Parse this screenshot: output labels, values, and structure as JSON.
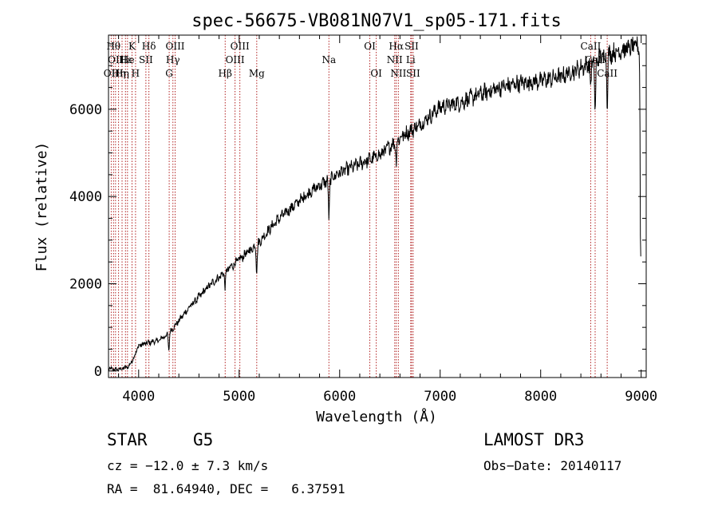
{
  "chart_data": {
    "type": "line",
    "title": "spec-56675-VB081N07V1_sp05-171.fits",
    "xlabel": "Wavelength (Å)",
    "ylabel": "Flux (relative)",
    "xlim": [
      3700,
      9050
    ],
    "ylim": [
      -150,
      7700
    ],
    "xticks": [
      4000,
      5000,
      6000,
      7000,
      8000,
      9000
    ],
    "yticks": [
      0,
      2000,
      4000,
      6000
    ],
    "continuum": [
      [
        3700,
        50
      ],
      [
        3800,
        30
      ],
      [
        3900,
        100
      ],
      [
        3950,
        300
      ],
      [
        4000,
        580
      ],
      [
        4100,
        650
      ],
      [
        4200,
        700
      ],
      [
        4300,
        860
      ],
      [
        4400,
        1150
      ],
      [
        4500,
        1450
      ],
      [
        4600,
        1700
      ],
      [
        4700,
        1950
      ],
      [
        4800,
        2150
      ],
      [
        4900,
        2350
      ],
      [
        5000,
        2550
      ],
      [
        5100,
        2750
      ],
      [
        5200,
        2950
      ],
      [
        5300,
        3250
      ],
      [
        5400,
        3500
      ],
      [
        5500,
        3700
      ],
      [
        5600,
        3900
      ],
      [
        5700,
        4100
      ],
      [
        5800,
        4250
      ],
      [
        5900,
        4400
      ],
      [
        6000,
        4550
      ],
      [
        6100,
        4650
      ],
      [
        6200,
        4750
      ],
      [
        6300,
        4850
      ],
      [
        6400,
        4950
      ],
      [
        6500,
        5150
      ],
      [
        6600,
        5350
      ],
      [
        6700,
        5500
      ],
      [
        6800,
        5650
      ],
      [
        6900,
        5850
      ],
      [
        7000,
        6050
      ],
      [
        7200,
        6150
      ],
      [
        7400,
        6350
      ],
      [
        7600,
        6500
      ],
      [
        7800,
        6600
      ],
      [
        8000,
        6650
      ],
      [
        8200,
        6750
      ],
      [
        8400,
        6950
      ],
      [
        8600,
        7200
      ],
      [
        8800,
        7350
      ],
      [
        8950,
        7450
      ],
      [
        8990,
        7400
      ]
    ],
    "absorption_features": [
      {
        "wavelength": 4300,
        "depth": 400
      },
      {
        "wavelength": 4861,
        "depth": 350
      },
      {
        "wavelength": 5175,
        "depth": 600
      },
      {
        "wavelength": 5893,
        "depth": 900
      },
      {
        "wavelength": 6563,
        "depth": 500
      },
      {
        "wavelength": 8498,
        "depth": 600
      },
      {
        "wavelength": 8542,
        "depth": 1300
      },
      {
        "wavelength": 8662,
        "depth": 1100
      },
      {
        "wavelength": 8995,
        "depth": 5000
      }
    ],
    "line_markers": [
      {
        "wavelength": 3727,
        "labels": [
          {
            "text": "OII",
            "row": 2
          }
        ]
      },
      {
        "wavelength": 3750,
        "labels": [
          {
            "text": "Hθ",
            "row": 0
          }
        ]
      },
      {
        "wavelength": 3770,
        "labels": [
          {
            "text": "OII",
            "row": 1
          }
        ]
      },
      {
        "wavelength": 3800,
        "labels": [
          {
            "text": "Hη",
            "row": 2
          }
        ]
      },
      {
        "wavelength": 3835,
        "labels": [
          {
            "text": "Hη",
            "row": 2
          }
        ]
      },
      {
        "wavelength": 3869,
        "labels": [
          {
            "text": "Hε",
            "row": 1
          }
        ]
      },
      {
        "wavelength": 3889,
        "labels": [
          {
            "text": "He",
            "row": 1
          }
        ]
      },
      {
        "wavelength": 3934,
        "labels": [
          {
            "text": "K",
            "row": 0
          }
        ]
      },
      {
        "wavelength": 3969,
        "labels": [
          {
            "text": "H",
            "row": 2
          }
        ]
      },
      {
        "wavelength": 4072,
        "labels": [
          {
            "text": "SII",
            "row": 1
          }
        ]
      },
      {
        "wavelength": 4102,
        "labels": [
          {
            "text": "Hδ",
            "row": 0
          }
        ]
      },
      {
        "wavelength": 4304,
        "labels": [
          {
            "text": "G",
            "row": 2
          }
        ]
      },
      {
        "wavelength": 4341,
        "labels": [
          {
            "text": "Hγ",
            "row": 1
          }
        ]
      },
      {
        "wavelength": 4363,
        "labels": [
          {
            "text": "OIII",
            "row": 0
          }
        ]
      },
      {
        "wavelength": 4861,
        "labels": [
          {
            "text": "Hβ",
            "row": 2
          }
        ]
      },
      {
        "wavelength": 4959,
        "labels": [
          {
            "text": "OIII",
            "row": 1
          }
        ]
      },
      {
        "wavelength": 5007,
        "labels": [
          {
            "text": "OIII",
            "row": 0
          }
        ]
      },
      {
        "wavelength": 5175,
        "labels": [
          {
            "text": "Mg",
            "row": 2
          }
        ]
      },
      {
        "wavelength": 5893,
        "labels": [
          {
            "text": "Na",
            "row": 1
          }
        ]
      },
      {
        "wavelength": 6300,
        "labels": [
          {
            "text": "OI",
            "row": 0
          }
        ]
      },
      {
        "wavelength": 6364,
        "labels": [
          {
            "text": "OI",
            "row": 2
          }
        ]
      },
      {
        "wavelength": 6548,
        "labels": [
          {
            "text": "NII",
            "row": 1
          }
        ]
      },
      {
        "wavelength": 6563,
        "labels": [
          {
            "text": "Hα",
            "row": 0
          }
        ]
      },
      {
        "wavelength": 6584,
        "labels": [
          {
            "text": "NII",
            "row": 2
          }
        ]
      },
      {
        "wavelength": 6707,
        "labels": [
          {
            "text": "Li",
            "row": 1
          }
        ]
      },
      {
        "wavelength": 6716,
        "labels": [
          {
            "text": "SII",
            "row": 0
          }
        ]
      },
      {
        "wavelength": 6731,
        "labels": [
          {
            "text": "SII",
            "row": 2
          }
        ]
      },
      {
        "wavelength": 8498,
        "labels": [
          {
            "text": "CaII",
            "row": 0
          }
        ]
      },
      {
        "wavelength": 8542,
        "labels": [
          {
            "text": "CaII",
            "row": 1
          }
        ]
      },
      {
        "wavelength": 8662,
        "labels": [
          {
            "text": "CaII",
            "row": 2
          }
        ]
      }
    ],
    "line_color": "#000000",
    "marker_color": "#b22222"
  },
  "info": {
    "object_class": "STAR",
    "subclass": "G5",
    "survey": "LAMOST DR3",
    "redshift": "cz = −12.0 ± 7.3 km/s",
    "obs_date": "Obs−Date: 20140117",
    "coords": "RA =  81.64940, DEC =   6.37591"
  }
}
